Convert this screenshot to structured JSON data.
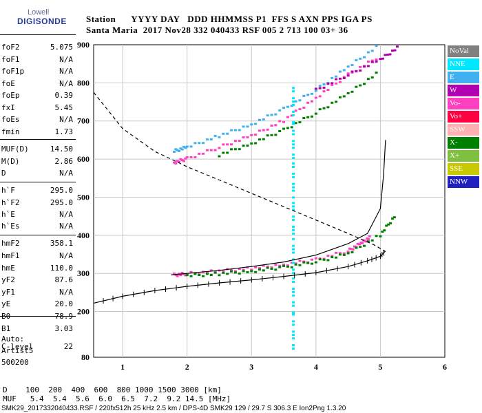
{
  "logo": {
    "line1": "Lowell",
    "line2": "DIGISONDE"
  },
  "header": {
    "row1": "Station      YYYY DAY   DDD HHMMSS P1  FFS S AXN PPS IGA PS",
    "row2": "Santa Maria  2017 Nov28 332 040433 RSF 005 2 713 100 03+ 36"
  },
  "params": [
    {
      "name": "foF2",
      "value": "5.075"
    },
    {
      "name": "foF1",
      "value": "N/A"
    },
    {
      "name": "foF1p",
      "value": "N/A"
    },
    {
      "name": "foE",
      "value": "N/A"
    },
    {
      "name": "foEp",
      "value": "0.39"
    },
    {
      "name": "fxI",
      "value": "5.45"
    },
    {
      "name": "foEs",
      "value": "N/A"
    },
    {
      "name": "fmin",
      "value": "1.73"
    },
    {
      "name": "MUF(D)",
      "value": "14.50"
    },
    {
      "name": "M(D)",
      "value": "2.86"
    },
    {
      "name": "D",
      "value": "N/A"
    },
    {
      "name": "h`F",
      "value": "295.0"
    },
    {
      "name": "h`F2",
      "value": "295.0"
    },
    {
      "name": "h`E",
      "value": "N/A"
    },
    {
      "name": "h`Es",
      "value": "N/A"
    },
    {
      "name": "hmF2",
      "value": "358.1"
    },
    {
      "name": "hmF1",
      "value": "N/A"
    },
    {
      "name": "hmE",
      "value": "110.0"
    },
    {
      "name": "yF2",
      "value": "87.6"
    },
    {
      "name": "yF1",
      "value": "N/A"
    },
    {
      "name": "yE",
      "value": "20.0"
    },
    {
      "name": "B0",
      "value": "78.9"
    },
    {
      "name": "B1",
      "value": "3.03"
    },
    {
      "name": "C-level",
      "value": "22"
    }
  ],
  "autoscale": {
    "line1": "Auto:",
    "line2": "Artist5",
    "line3": "500200"
  },
  "legend": [
    {
      "label": "NoVal",
      "color": "#808080"
    },
    {
      "label": "NNE",
      "color": "#00e8ff"
    },
    {
      "label": "E",
      "color": "#40b0f0"
    },
    {
      "label": "W",
      "color": "#b000b0"
    },
    {
      "label": "Vo-",
      "color": "#ff40c0"
    },
    {
      "label": "Vo+",
      "color": "#ff0040"
    },
    {
      "label": "SSW",
      "color": "#ffb0b0"
    },
    {
      "label": "X-",
      "color": "#008000"
    },
    {
      "label": "X+",
      "color": "#80c040"
    },
    {
      "label": "SSE",
      "color": "#c8c800"
    },
    {
      "label": "NNW",
      "color": "#2020c0"
    }
  ],
  "footer": {
    "d_row": "D    100  200  400  600  800 1000 1500 3000 [km]",
    "muf_row": "MUF   5.4  5.4  5.6  6.0  6.5  7.2  9.2 14.5 [MHz]",
    "info": "SMK29_2017332040433.RSF / 220fx512h 25 kHz 2.5 km / DPS-4D SMK29 129 / 29.7 S 306.3 E Ion2Png 1.3.20"
  },
  "chart_data": {
    "type": "scatter",
    "xlabel": "",
    "ylabel": "",
    "xlim": [
      0.55,
      6.0
    ],
    "ylim": [
      80,
      900
    ],
    "x_ticks": [
      1,
      2,
      3,
      4,
      5,
      6
    ],
    "y_ticks": [
      80,
      200,
      300,
      400,
      500,
      600,
      700,
      800,
      900
    ],
    "grid": true,
    "series": [
      {
        "name": "Vo-",
        "x": [
          1.8,
          2.0,
          2.5,
          3.0,
          3.5,
          4.0,
          4.5,
          4.7,
          4.85
        ],
        "y": [
          295,
          298,
          305,
          312,
          322,
          335,
          358,
          378,
          395
        ]
      },
      {
        "name": "X-",
        "x": [
          2.0,
          2.5,
          3.0,
          3.5,
          4.0,
          4.5,
          5.0,
          5.25
        ],
        "y": [
          293,
          298,
          305,
          315,
          330,
          350,
          400,
          455
        ]
      },
      {
        "name": "Vo-",
        "x": [
          1.8,
          2.0,
          2.5,
          3.0,
          3.5,
          4.0,
          4.5,
          5.0
        ],
        "y": [
          590,
          600,
          630,
          660,
          700,
          760,
          820,
          870
        ]
      },
      {
        "name": "E",
        "x": [
          1.8,
          2.0,
          2.5,
          3.0,
          3.5,
          4.0,
          4.5,
          5.0
        ],
        "y": [
          620,
          630,
          660,
          690,
          730,
          780,
          840,
          900
        ]
      },
      {
        "name": "X-",
        "x": [
          2.5,
          3.0,
          3.5,
          4.0,
          4.5,
          5.0
        ],
        "y": [
          610,
          640,
          675,
          720,
          770,
          830
        ]
      },
      {
        "name": "W",
        "x": [
          4.0,
          4.5,
          5.0,
          5.3
        ],
        "y": [
          780,
          820,
          860,
          895
        ]
      },
      {
        "name": "NNE",
        "x": [
          3.65,
          3.65,
          3.65,
          3.65,
          3.65,
          3.65,
          3.65,
          3.65
        ],
        "y": [
          100,
          200,
          300,
          400,
          500,
          600,
          700,
          800
        ]
      }
    ],
    "profile": {
      "x": [
        0.55,
        1.0,
        1.5,
        2.0,
        2.5,
        3.0,
        3.5,
        4.0,
        4.5,
        4.8,
        5.0,
        5.075
      ],
      "y": [
        222,
        240,
        255,
        266,
        275,
        283,
        292,
        302,
        318,
        333,
        345,
        358
      ]
    },
    "virtual_fit": {
      "x": [
        1.75,
        2.0,
        2.5,
        3.0,
        3.5,
        4.0,
        4.5,
        4.8,
        5.0,
        5.05,
        5.08
      ],
      "y": [
        296,
        300,
        308,
        318,
        330,
        348,
        378,
        405,
        470,
        560,
        650
      ]
    },
    "dashed_curve": {
      "x": [
        0.55,
        1.0,
        1.5,
        2.0,
        2.5,
        3.0,
        3.5,
        4.0,
        4.5,
        4.9,
        5.075,
        5.0
      ],
      "y": [
        775,
        680,
        620,
        580,
        545,
        510,
        475,
        440,
        405,
        375,
        358,
        345
      ]
    }
  }
}
